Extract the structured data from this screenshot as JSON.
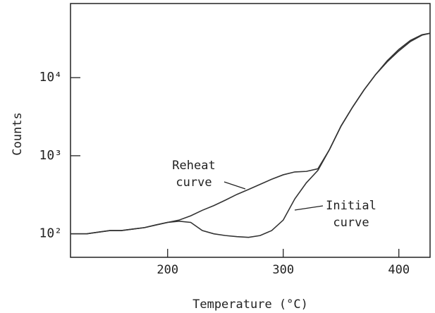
{
  "chart_data": {
    "type": "line",
    "xlabel": "Temperature (°C)",
    "ylabel": "Counts",
    "log_y": true,
    "xlim": [
      116,
      427
    ],
    "ylim": [
      50,
      89000
    ],
    "xticks": [
      200,
      300,
      400
    ],
    "yticks": [
      {
        "value": 100,
        "label": "10²"
      },
      {
        "value": 1000,
        "label": "10³"
      },
      {
        "value": 10000,
        "label": "10⁴"
      }
    ],
    "x": [
      116,
      130,
      140,
      150,
      160,
      170,
      180,
      190,
      200,
      210,
      220,
      230,
      240,
      250,
      260,
      270,
      280,
      290,
      300,
      310,
      320,
      330,
      340,
      350,
      360,
      370,
      380,
      390,
      400,
      410,
      420,
      427
    ],
    "series": [
      {
        "name": "Reheat curve",
        "color": "#333333",
        "values": [
          100,
          100,
          105,
          110,
          110,
          115,
          120,
          130,
          140,
          150,
          170,
          200,
          230,
          270,
          320,
          370,
          430,
          500,
          570,
          620,
          630,
          680,
          1200,
          2400,
          4200,
          7000,
          11000,
          16000,
          22000,
          29000,
          35000,
          37000
        ]
      },
      {
        "name": "Initial curve",
        "color": "#333333",
        "values": [
          100,
          100,
          105,
          110,
          110,
          115,
          120,
          130,
          140,
          145,
          140,
          110,
          100,
          95,
          92,
          90,
          95,
          110,
          150,
          280,
          450,
          650,
          1200,
          2400,
          4200,
          7000,
          11000,
          16500,
          23000,
          30000,
          35500,
          37000
        ]
      }
    ],
    "annotations": [
      [
        "Reheat",
        "curve"
      ],
      [
        "Initial",
        "curve"
      ]
    ]
  }
}
